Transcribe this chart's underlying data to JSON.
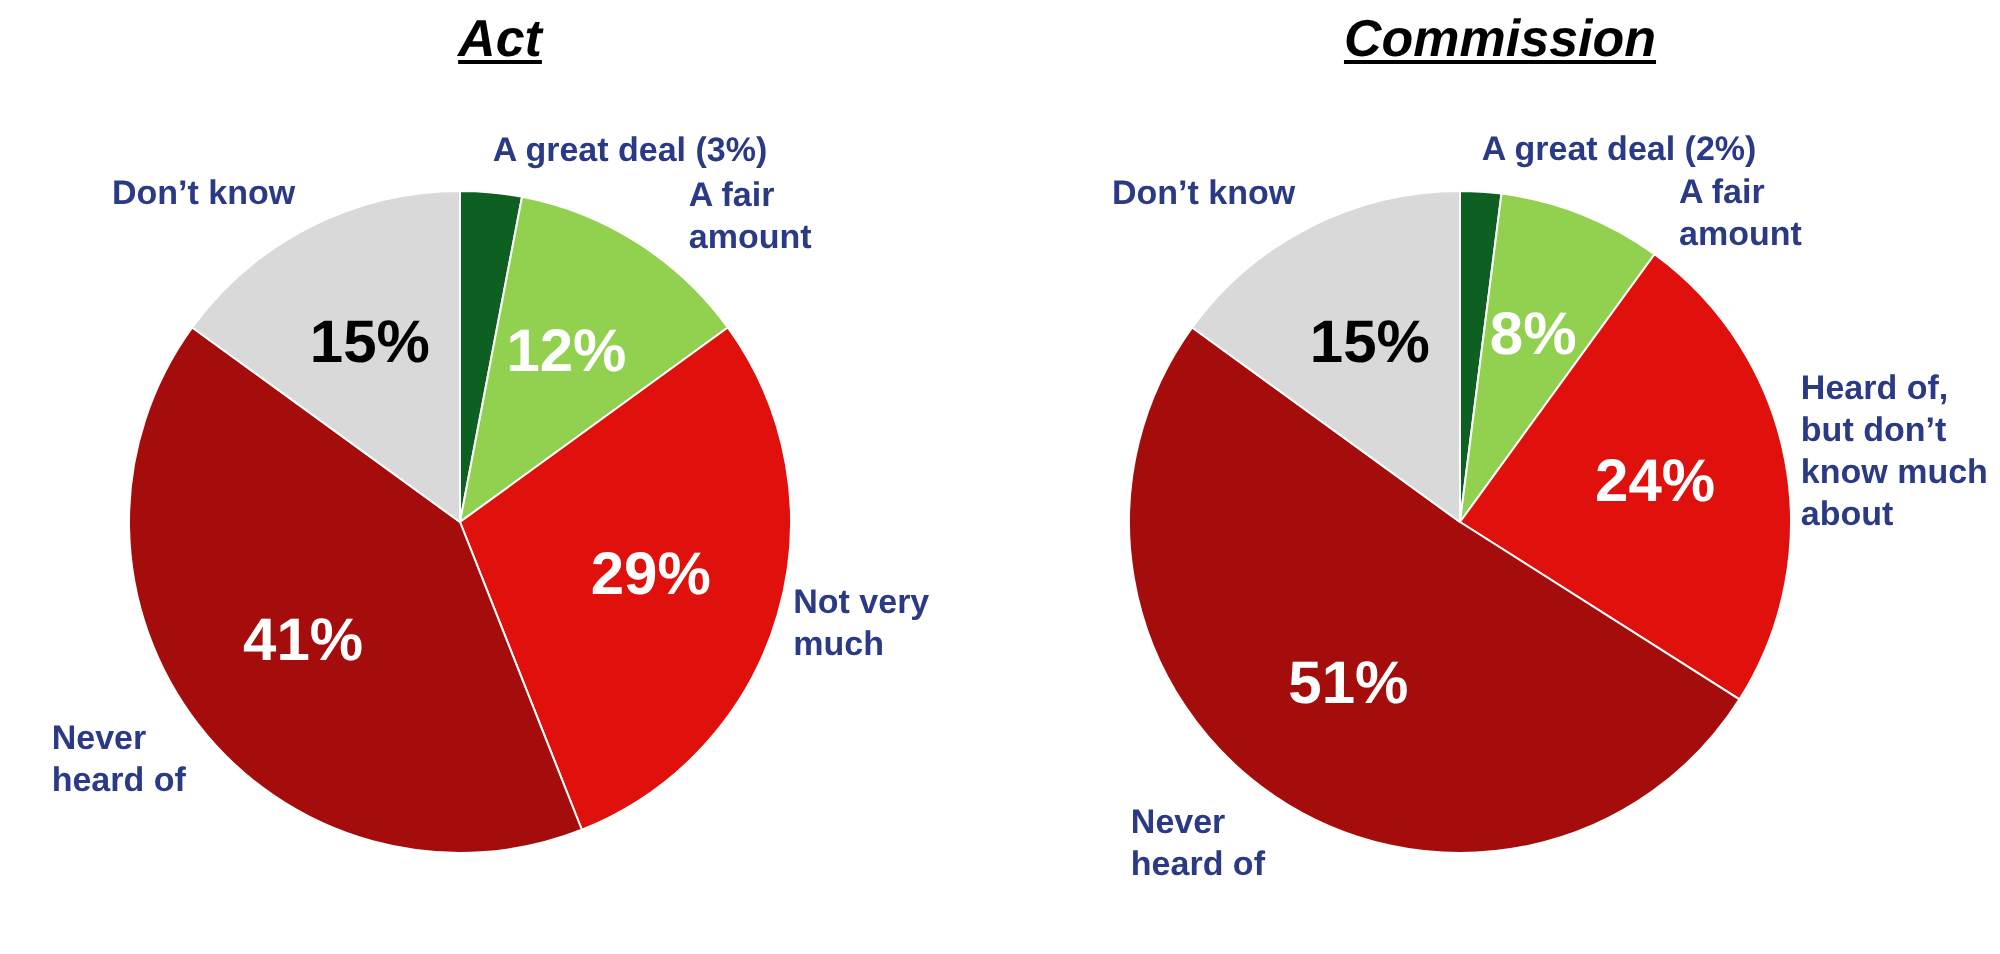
{
  "chart_data": [
    {
      "type": "pie",
      "title": "Act",
      "categories": [
        "A great deal (3%)",
        "A fair amount",
        "Not very much",
        "Never heard of",
        "Don’t know"
      ],
      "values": [
        3,
        12,
        29,
        41,
        15
      ],
      "colors": [
        "#0e5f22",
        "#92d050",
        "#e0100c",
        "#a50c0c",
        "#d9d9d9"
      ],
      "value_labels": [
        null,
        "12%",
        "29%",
        "41%",
        "15%"
      ],
      "legend": false
    },
    {
      "type": "pie",
      "title": "Commission",
      "categories": [
        "A great deal (2%)",
        "A fair amount",
        "Heard of, but don’t know much about",
        "Never heard of",
        "Don’t know"
      ],
      "values": [
        2,
        8,
        24,
        51,
        15
      ],
      "colors": [
        "#0e5f22",
        "#92d050",
        "#e0100c",
        "#a50c0c",
        "#d9d9d9"
      ],
      "value_labels": [
        null,
        "8%",
        "24%",
        "51%",
        "15%"
      ],
      "legend": false
    }
  ]
}
